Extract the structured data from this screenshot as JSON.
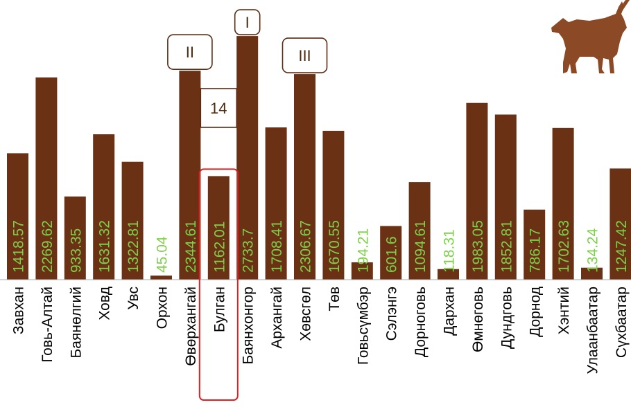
{
  "colors": {
    "bar": "#6b3115",
    "label_inside": "#7ed04a",
    "label_small": "#8ed05a",
    "category": "#000000",
    "axis": "#aaaaaa",
    "highlight": "#e02020",
    "box_stroke": "#5a2a12",
    "goat": "#8b4a25"
  },
  "icons": {
    "mascot": "goat-silhouette-icon"
  },
  "chart_data": {
    "type": "bar",
    "categories": [
      "Завхан",
      "Говь-Алтай",
      "Баянөлгий",
      "Ховд",
      "Увс",
      "Орхон",
      "Өвөрхангай",
      "Булган",
      "Баянхонгор",
      "Архангай",
      "Хөвсгөл",
      "Төв",
      "Говьсүмбэр",
      "Сэлэнгэ",
      "Дорноговь",
      "Дархан",
      "Өмнөговь",
      "Дундговь",
      "Дорнод",
      "Хэнтий",
      "Улаанбаатар",
      "Сүхбаатар"
    ],
    "values": [
      1418.57,
      2269.62,
      933.35,
      1631.32,
      1322.81,
      45.04,
      2344.61,
      1162.01,
      2733.7,
      1708.41,
      2306.67,
      1670.55,
      194.21,
      601.6,
      1094.61,
      118.31,
      1983.05,
      1852.81,
      786.17,
      1702.63,
      134.24,
      1247.42
    ],
    "data_labels": [
      "1418.57",
      "2269.62",
      "933.35",
      "1631.32",
      "1322.81",
      "45.04",
      "2344.61",
      "1162.01",
      "2733.7",
      "1708.41",
      "2306.67",
      "1670.55",
      "194.21",
      "601.6",
      "1094.61",
      "118.31",
      "1983.05",
      "1852.81",
      "786.17",
      "1702.63",
      "134.24",
      "1247.42"
    ],
    "ylim": [
      0,
      2750
    ],
    "grid": false,
    "legend": "none",
    "title": "",
    "xlabel": "",
    "ylabel": "",
    "highlighted_category": "Булган",
    "annotations": [
      {
        "text": "I",
        "category": "Баянхонгор"
      },
      {
        "text": "II",
        "category": "Өвөрхангай"
      },
      {
        "text": "III",
        "category": "Хөвсгөл"
      },
      {
        "text": "14",
        "category": "Булган"
      }
    ]
  }
}
